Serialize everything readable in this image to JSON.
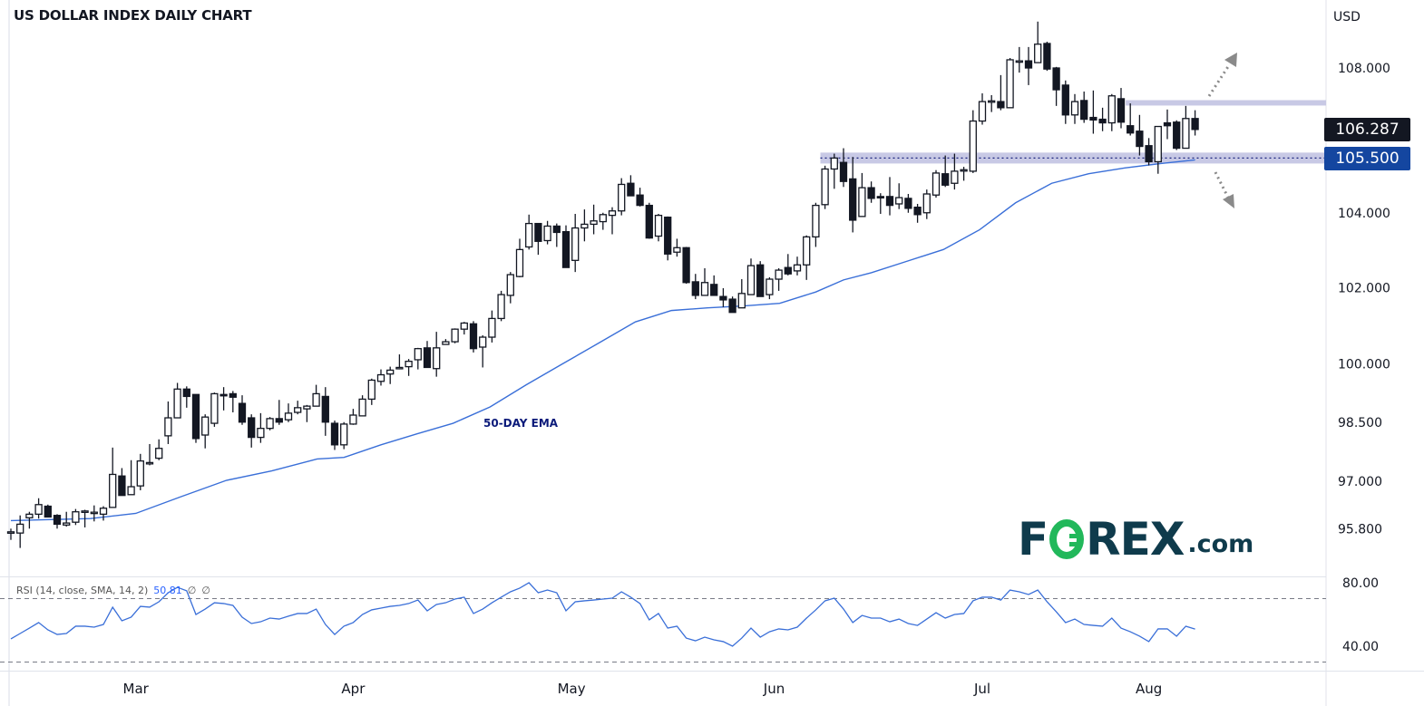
{
  "title": "US DOLLAR INDEX DAILY CHART",
  "ema_label": "50-DAY EMA",
  "logo": "FOREX.com",
  "rsi_legend": {
    "label": "RSI (14, close, SMA, 14, 2)",
    "value": "50.81",
    "extra1": "∅",
    "extra2": "∅"
  },
  "last_price_label": "106.287",
  "level_label": "105.500",
  "colors": {
    "up_body": "#ffffff",
    "down_body": "#131722",
    "ema": "#3a6fd8",
    "rsi": "#3a6fd8",
    "zone": "#c5c6e4",
    "last_price_bg": "#131722",
    "level_bg": "#1446a0",
    "arrow": "#8a8a8a"
  },
  "chart_data": {
    "type": "candlestick",
    "title": "US DOLLAR INDEX DAILY CHART",
    "y_unit": "USD",
    "y_scale": "log",
    "y_ticks": [
      "108.000",
      "104.000",
      "102.000",
      "100.000",
      "98.500",
      "97.000",
      "95.800"
    ],
    "x_ticks": [
      {
        "label": "Mar",
        "bar": 13.5
      },
      {
        "label": "Apr",
        "bar": 37
      },
      {
        "label": "May",
        "bar": 60.6
      },
      {
        "label": "Jun",
        "bar": 82.5
      },
      {
        "label": "Jul",
        "bar": 105
      },
      {
        "label": "Aug",
        "bar": 123
      }
    ],
    "ohlc": [
      [
        95.72,
        95.81,
        95.53,
        95.73
      ],
      [
        95.7,
        96.14,
        95.33,
        95.92
      ],
      [
        96.08,
        96.23,
        95.81,
        96.17
      ],
      [
        96.17,
        96.57,
        96.06,
        96.41
      ],
      [
        96.37,
        96.41,
        96.1,
        96.1
      ],
      [
        96.14,
        96.17,
        95.81,
        95.92
      ],
      [
        95.9,
        96.23,
        95.86,
        95.95
      ],
      [
        95.97,
        96.3,
        95.9,
        96.23
      ],
      [
        96.23,
        96.28,
        95.84,
        96.25
      ],
      [
        96.21,
        96.39,
        95.99,
        96.22
      ],
      [
        96.17,
        96.37,
        96.01,
        96.32
      ],
      [
        96.34,
        97.85,
        96.34,
        97.17
      ],
      [
        97.13,
        97.33,
        96.64,
        96.64
      ],
      [
        96.66,
        97.53,
        96.66,
        96.86
      ],
      [
        96.88,
        97.69,
        96.77,
        97.51
      ],
      [
        97.46,
        97.94,
        97.4,
        97.47
      ],
      [
        97.58,
        98.06,
        97.53,
        97.83
      ],
      [
        98.15,
        99.03,
        97.94,
        98.61
      ],
      [
        98.61,
        99.51,
        98.61,
        99.35
      ],
      [
        99.35,
        99.42,
        98.87,
        99.16
      ],
      [
        99.21,
        99.21,
        97.97,
        98.08
      ],
      [
        98.17,
        98.7,
        97.83,
        98.63
      ],
      [
        98.47,
        99.26,
        98.38,
        99.23
      ],
      [
        99.21,
        99.4,
        98.8,
        99.2
      ],
      [
        99.23,
        99.3,
        98.75,
        99.14
      ],
      [
        98.98,
        99.19,
        98.43,
        98.5
      ],
      [
        98.61,
        98.7,
        97.85,
        98.11
      ],
      [
        98.11,
        98.73,
        97.97,
        98.34
      ],
      [
        98.34,
        98.63,
        98.29,
        98.59
      ],
      [
        98.59,
        99.07,
        98.43,
        98.5
      ],
      [
        98.56,
        98.98,
        98.5,
        98.73
      ],
      [
        98.75,
        99.05,
        98.7,
        98.87
      ],
      [
        98.84,
        98.94,
        98.5,
        98.91
      ],
      [
        98.91,
        99.46,
        98.91,
        99.23
      ],
      [
        99.16,
        99.4,
        98.15,
        98.5
      ],
      [
        98.47,
        98.54,
        97.79,
        97.92
      ],
      [
        97.92,
        98.5,
        97.81,
        98.45
      ],
      [
        98.45,
        98.84,
        98.43,
        98.68
      ],
      [
        98.66,
        99.19,
        98.66,
        99.09
      ],
      [
        99.09,
        99.62,
        98.94,
        99.58
      ],
      [
        99.55,
        99.86,
        99.44,
        99.72
      ],
      [
        99.74,
        99.93,
        99.48,
        99.84
      ],
      [
        99.9,
        100.25,
        99.86,
        99.91
      ],
      [
        99.93,
        100.13,
        99.69,
        100.07
      ],
      [
        100.11,
        100.42,
        99.86,
        100.4
      ],
      [
        100.42,
        100.6,
        99.91,
        99.91
      ],
      [
        99.88,
        100.84,
        99.67,
        100.42
      ],
      [
        100.51,
        100.65,
        100.51,
        100.58
      ],
      [
        100.58,
        100.93,
        100.54,
        100.91
      ],
      [
        100.91,
        101.1,
        100.77,
        101.07
      ],
      [
        101.05,
        101.12,
        100.3,
        100.4
      ],
      [
        100.44,
        100.75,
        99.91,
        100.7
      ],
      [
        100.7,
        101.4,
        100.56,
        101.19
      ],
      [
        101.19,
        101.92,
        101.12,
        101.82
      ],
      [
        101.8,
        102.42,
        101.59,
        102.35
      ],
      [
        102.3,
        103.31,
        102.28,
        103.02
      ],
      [
        103.09,
        103.96,
        103.02,
        103.72
      ],
      [
        103.72,
        103.72,
        102.88,
        103.24
      ],
      [
        103.26,
        103.79,
        103.16,
        103.65
      ],
      [
        103.65,
        103.72,
        103.09,
        103.48
      ],
      [
        103.5,
        103.67,
        102.54,
        102.54
      ],
      [
        102.73,
        103.98,
        102.42,
        103.6
      ],
      [
        103.6,
        104.1,
        103.24,
        103.7
      ],
      [
        103.7,
        104.23,
        103.43,
        103.79
      ],
      [
        103.77,
        104.01,
        103.55,
        103.96
      ],
      [
        103.94,
        104.16,
        103.43,
        104.06
      ],
      [
        104.06,
        104.95,
        103.94,
        104.78
      ],
      [
        104.81,
        105.03,
        104.47,
        104.47
      ],
      [
        104.49,
        104.69,
        104.18,
        104.21
      ],
      [
        104.21,
        104.28,
        103.31,
        103.33
      ],
      [
        103.38,
        103.98,
        103.24,
        103.94
      ],
      [
        103.89,
        103.91,
        102.73,
        102.9
      ],
      [
        102.95,
        103.31,
        102.83,
        103.07
      ],
      [
        103.07,
        103.09,
        102.11,
        102.14
      ],
      [
        102.16,
        102.37,
        101.7,
        101.8
      ],
      [
        101.8,
        102.52,
        101.8,
        102.14
      ],
      [
        102.09,
        102.33,
        101.8,
        101.8
      ],
      [
        101.77,
        101.99,
        101.49,
        101.68
      ],
      [
        101.7,
        101.77,
        101.35,
        101.35
      ],
      [
        101.47,
        102.23,
        101.47,
        101.85
      ],
      [
        101.82,
        102.78,
        101.82,
        102.59
      ],
      [
        102.61,
        102.71,
        101.77,
        101.77
      ],
      [
        101.82,
        102.28,
        101.7,
        102.23
      ],
      [
        102.23,
        102.52,
        101.92,
        102.47
      ],
      [
        102.54,
        102.9,
        102.33,
        102.37
      ],
      [
        102.45,
        102.83,
        102.33,
        102.61
      ],
      [
        102.61,
        103.4,
        102.21,
        103.36
      ],
      [
        103.36,
        104.28,
        103.09,
        104.21
      ],
      [
        104.23,
        105.29,
        104.11,
        105.2
      ],
      [
        105.2,
        105.62,
        104.66,
        105.5
      ],
      [
        105.38,
        105.77,
        104.71,
        104.86
      ],
      [
        104.93,
        105.53,
        103.48,
        103.81
      ],
      [
        103.91,
        105.09,
        103.91,
        104.69
      ],
      [
        104.69,
        104.86,
        104.28,
        104.4
      ],
      [
        104.45,
        104.54,
        103.98,
        104.44
      ],
      [
        104.45,
        104.98,
        103.94,
        104.21
      ],
      [
        104.25,
        104.81,
        104.11,
        104.42
      ],
      [
        104.4,
        104.52,
        104.01,
        104.13
      ],
      [
        104.16,
        104.25,
        103.74,
        103.96
      ],
      [
        104.01,
        104.64,
        103.84,
        104.52
      ],
      [
        104.49,
        105.17,
        104.42,
        105.09
      ],
      [
        105.07,
        105.57,
        104.71,
        104.76
      ],
      [
        104.81,
        105.62,
        104.64,
        105.14
      ],
      [
        105.17,
        105.26,
        104.88,
        105.18
      ],
      [
        105.14,
        106.82,
        105.09,
        106.52
      ],
      [
        106.52,
        107.29,
        106.42,
        107.06
      ],
      [
        107.06,
        107.24,
        106.77,
        107.08
      ],
      [
        107.06,
        107.8,
        106.82,
        106.89
      ],
      [
        106.89,
        108.28,
        106.89,
        108.23
      ],
      [
        108.18,
        108.59,
        107.87,
        108.2
      ],
      [
        108.2,
        108.59,
        107.52,
        108.0
      ],
      [
        108.15,
        109.31,
        108.15,
        108.67
      ],
      [
        108.69,
        108.74,
        107.92,
        107.97
      ],
      [
        108.0,
        108.03,
        106.94,
        107.39
      ],
      [
        107.52,
        107.65,
        106.44,
        106.69
      ],
      [
        106.69,
        107.27,
        106.44,
        107.06
      ],
      [
        107.09,
        107.34,
        106.47,
        106.57
      ],
      [
        106.62,
        107.37,
        106.17,
        106.55
      ],
      [
        106.57,
        106.89,
        106.24,
        106.47
      ],
      [
        106.47,
        107.27,
        106.24,
        107.22
      ],
      [
        107.14,
        107.44,
        106.32,
        106.49
      ],
      [
        106.39,
        107.01,
        106.12,
        106.19
      ],
      [
        106.24,
        106.69,
        105.57,
        105.82
      ],
      [
        105.84,
        106.05,
        105.3,
        105.4
      ],
      [
        105.4,
        106.37,
        105.07,
        106.37
      ],
      [
        106.47,
        106.84,
        106.02,
        106.39
      ],
      [
        106.49,
        106.54,
        105.72,
        105.77
      ],
      [
        105.77,
        106.94,
        105.77,
        106.59
      ],
      [
        106.59,
        106.82,
        106.12,
        106.287
      ]
    ],
    "ema50": [
      [
        0,
        96.01
      ],
      [
        8.6,
        96.06
      ],
      [
        13.5,
        96.19
      ],
      [
        18.4,
        96.61
      ],
      [
        23.3,
        97.02
      ],
      [
        28.2,
        97.26
      ],
      [
        33.1,
        97.56
      ],
      [
        36,
        97.6
      ],
      [
        40,
        97.92
      ],
      [
        43.9,
        98.2
      ],
      [
        47.8,
        98.47
      ],
      [
        51.8,
        98.89
      ],
      [
        55.7,
        99.46
      ],
      [
        59.6,
        100.0
      ],
      [
        63.5,
        100.54
      ],
      [
        67.5,
        101.1
      ],
      [
        71.4,
        101.4
      ],
      [
        75.3,
        101.47
      ],
      [
        79.2,
        101.52
      ],
      [
        83.1,
        101.59
      ],
      [
        87,
        101.89
      ],
      [
        90,
        102.21
      ],
      [
        93,
        102.4
      ],
      [
        96.9,
        102.71
      ],
      [
        100.8,
        103.02
      ],
      [
        104.7,
        103.55
      ],
      [
        108.6,
        104.28
      ],
      [
        112.5,
        104.81
      ],
      [
        116.5,
        105.07
      ],
      [
        120.4,
        105.23
      ],
      [
        124.3,
        105.35
      ],
      [
        128,
        105.45
      ]
    ],
    "zones": [
      {
        "low": 106.95,
        "high": 107.1,
        "from_bar": 120.5
      },
      {
        "low": 105.35,
        "high": 105.65,
        "from_bar": 87.5,
        "line": 105.5
      }
    ],
    "rsi": {
      "ticks": [
        "80.00",
        "40.00"
      ],
      "levels": [
        70,
        30
      ],
      "values": [
        44.6,
        48.0,
        51.4,
        54.9,
        50.3,
        47.4,
        48.0,
        52.6,
        52.6,
        52.0,
        53.7,
        64.6,
        56.0,
        58.3,
        65.1,
        64.6,
        68.0,
        73.7,
        77.1,
        74.9,
        60.0,
        63.4,
        67.4,
        66.9,
        65.7,
        58.3,
        54.3,
        55.4,
        57.7,
        57.1,
        58.9,
        60.6,
        60.6,
        63.4,
        53.7,
        47.4,
        52.6,
        54.9,
        60.0,
        62.9,
        64.0,
        65.1,
        65.7,
        66.9,
        69.1,
        62.3,
        66.3,
        67.4,
        69.7,
        70.9,
        60.6,
        63.4,
        67.4,
        70.9,
        74.3,
        76.6,
        80.0,
        73.7,
        75.4,
        73.7,
        62.3,
        68.0,
        68.6,
        69.1,
        69.7,
        70.3,
        74.3,
        70.9,
        66.9,
        56.6,
        60.6,
        51.4,
        52.6,
        45.1,
        43.4,
        45.7,
        44.0,
        42.9,
        40.0,
        45.1,
        51.4,
        45.7,
        49.1,
        50.9,
        50.3,
        52.0,
        57.7,
        62.9,
        68.6,
        70.3,
        63.4,
        54.9,
        59.4,
        57.7,
        57.7,
        55.4,
        57.1,
        54.3,
        53.1,
        57.1,
        61.1,
        57.7,
        60.0,
        60.6,
        68.6,
        70.9,
        70.9,
        69.1,
        75.4,
        74.3,
        72.6,
        75.4,
        68.0,
        61.7,
        54.9,
        57.1,
        53.7,
        53.1,
        52.6,
        57.7,
        51.4,
        49.1,
        46.3,
        42.9,
        50.9,
        50.9,
        46.3,
        52.6,
        50.81
      ]
    }
  }
}
